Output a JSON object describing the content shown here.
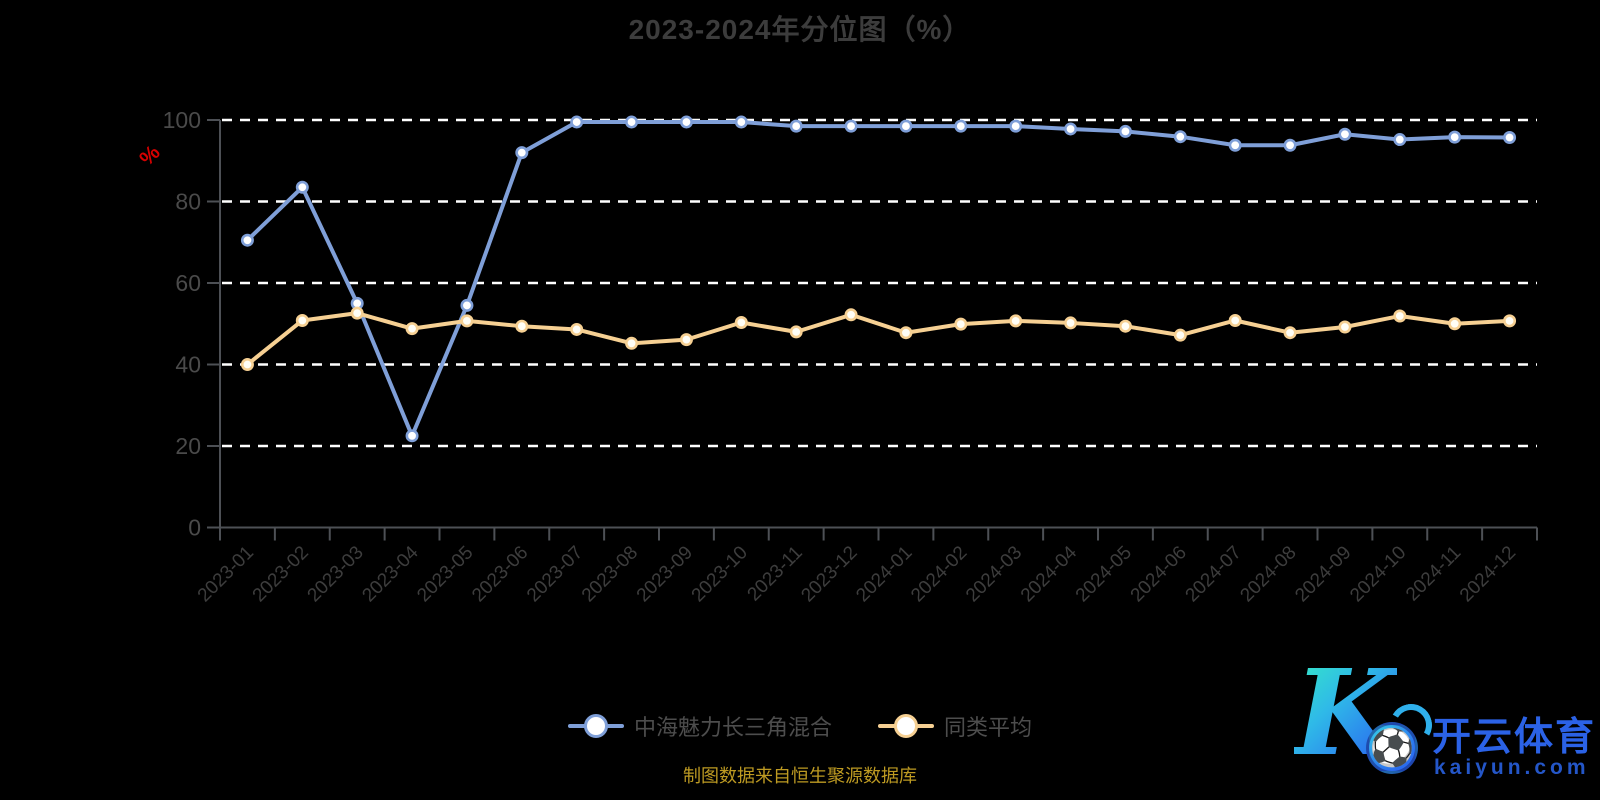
{
  "title": "2023-2024年分位图（%）",
  "y_axis_unit": "%",
  "footer": "制图数据来自恒生聚源数据库",
  "colors": {
    "background": "#000000",
    "title_text": "#3c3c3c",
    "axis_line": "#4d5055",
    "axis_label": "#444444",
    "gridline": "#ffffff",
    "y_unit_label": "#d60000",
    "legend_text": "#4d4d4d",
    "footer_text": "#bd9a22",
    "series_fund": "#7f9fd8",
    "series_peer": "#f6d093",
    "logo_blue": "#2b62e6"
  },
  "logo": {
    "k_letter": "K",
    "ball_icon": "⚽",
    "brand_cn": "开云体育",
    "brand_domain": "kaiyun.com"
  },
  "chart_data": {
    "type": "line",
    "title": "2023-2024年分位图（%）",
    "xlabel": "",
    "ylabel": "%",
    "ylim": [
      0,
      100
    ],
    "yticks": [
      0,
      20,
      40,
      60,
      80,
      100
    ],
    "grid": "horizontal-dashed-white",
    "legend_position": "bottom",
    "categories": [
      "2023-01",
      "2023-02",
      "2023-03",
      "2023-04",
      "2023-05",
      "2023-06",
      "2023-07",
      "2023-08",
      "2023-09",
      "2023-10",
      "2023-11",
      "2023-12",
      "2024-01",
      "2024-02",
      "2024-03",
      "2024-04",
      "2024-05",
      "2024-06",
      "2024-07",
      "2024-08",
      "2024-09",
      "2024-10",
      "2024-11",
      "2024-12"
    ],
    "series": [
      {
        "name": "中海魅力长三角混合",
        "color": "#7f9fd8",
        "values": [
          70.5,
          83.5,
          55,
          22.5,
          54.5,
          92,
          99.5,
          99.5,
          99.5,
          99.5,
          98.5,
          98.5,
          98.5,
          98.5,
          98.5,
          97.8,
          97.2,
          95.9,
          93.8,
          93.8,
          96.5,
          95.2,
          95.8,
          95.7
        ]
      },
      {
        "name": "同类平均",
        "color": "#f6d093",
        "values": [
          40,
          50.8,
          52.6,
          48.8,
          50.7,
          49.4,
          48.6,
          45.2,
          46.1,
          50.3,
          48,
          52.2,
          47.8,
          49.9,
          50.7,
          50.2,
          49.4,
          47.2,
          50.8,
          47.8,
          49.2,
          51.9,
          50,
          50.7
        ]
      }
    ]
  }
}
